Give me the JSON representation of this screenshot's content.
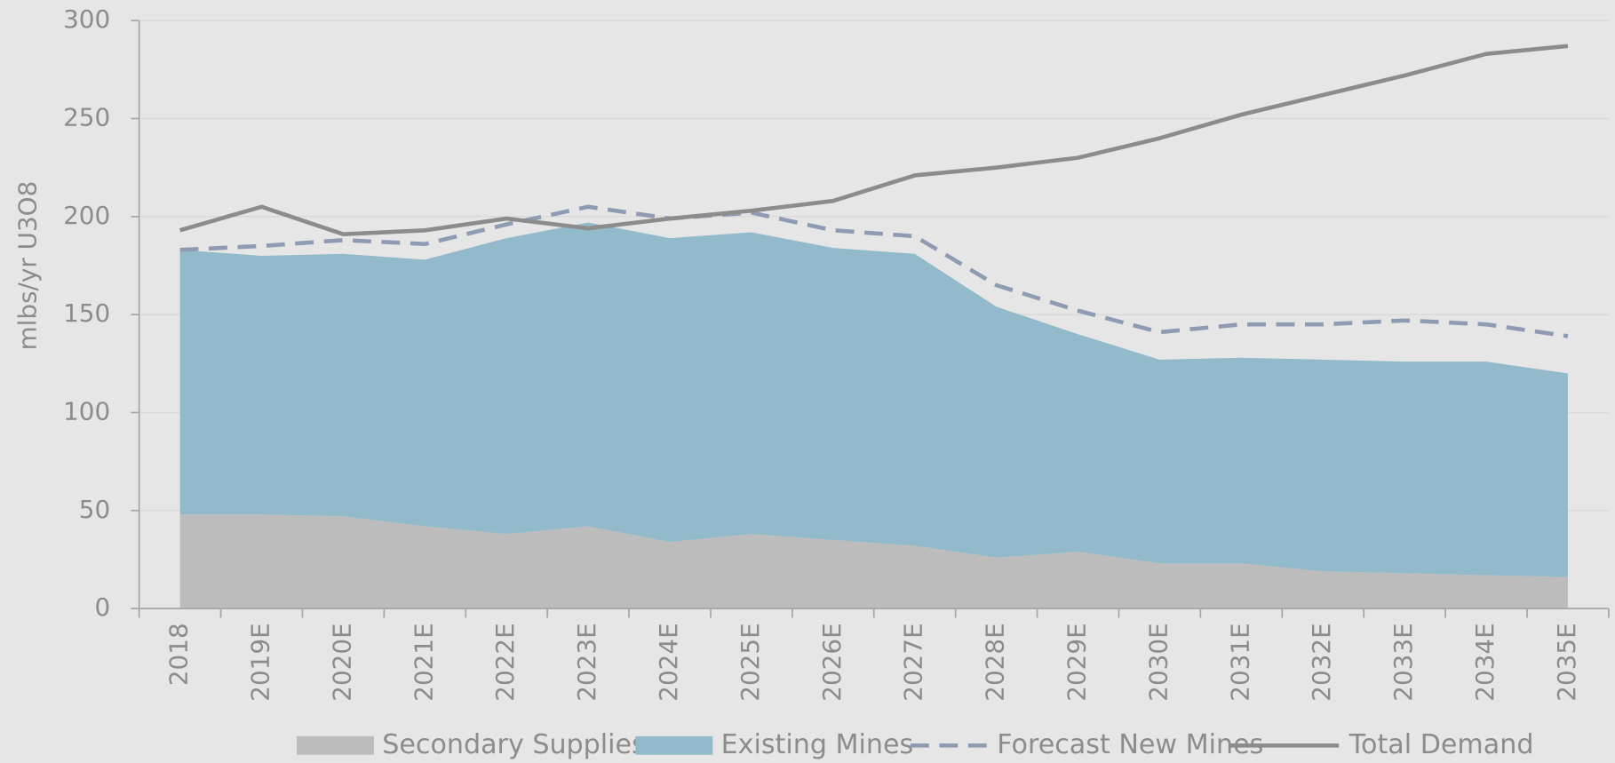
{
  "chart_data": {
    "type": "area",
    "y_label": "mlbs/yr U3O8",
    "categories": [
      "2018",
      "2019E",
      "2020E",
      "2021E",
      "2022E",
      "2023E",
      "2024E",
      "2025E",
      "2026E",
      "2027E",
      "2028E",
      "2029E",
      "2030E",
      "2031E",
      "2032E",
      "2033E",
      "2034E",
      "2035E"
    ],
    "ylim": [
      0,
      300
    ],
    "yticks": [
      0,
      50,
      100,
      150,
      200,
      250,
      300
    ],
    "grid": true,
    "legend": "bottom",
    "series": [
      {
        "name": "Secondary Supplies",
        "type": "area",
        "stacked": true,
        "color": "#bcbcbc",
        "values": [
          48,
          48,
          47,
          42,
          38,
          42,
          34,
          38,
          35,
          32,
          26,
          29,
          23,
          23,
          19,
          18,
          17,
          16
        ]
      },
      {
        "name": "Existing Mines",
        "type": "area",
        "stacked": true,
        "color": "#93bacb",
        "values": [
          135,
          132,
          134,
          136,
          151,
          155,
          155,
          154,
          149,
          149,
          128,
          111,
          104,
          105,
          108,
          108,
          109,
          104
        ]
      },
      {
        "name": "Forecast New Mines",
        "type": "line",
        "dashed": true,
        "color": "#8f9bb3",
        "values": [
          183,
          185,
          188,
          186,
          196,
          205,
          199,
          202,
          193,
          190,
          165,
          152,
          141,
          145,
          145,
          147,
          145,
          139
        ]
      },
      {
        "name": "Total Demand",
        "type": "line",
        "dashed": false,
        "color": "#8c8c8c",
        "values": [
          193,
          205,
          191,
          193,
          199,
          194,
          199,
          203,
          208,
          221,
          225,
          230,
          240,
          252,
          262,
          272,
          283,
          287
        ]
      }
    ]
  }
}
